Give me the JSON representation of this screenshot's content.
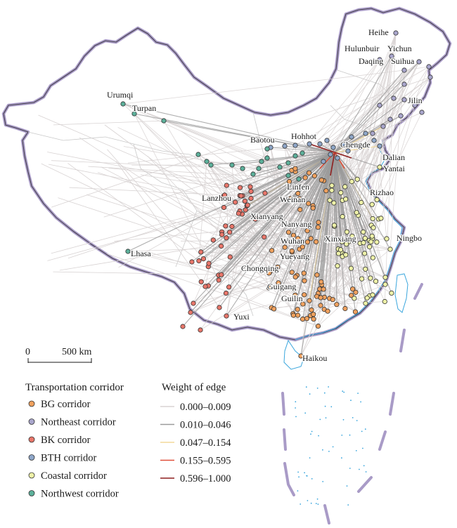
{
  "map": {
    "scale_bar": {
      "zero_label": "0",
      "distance_label": "500 km"
    },
    "city_labels": [
      {
        "name": "Heihe"
      },
      {
        "name": "Yichun"
      },
      {
        "name": "Hulunbuir"
      },
      {
        "name": "Daqing"
      },
      {
        "name": "Suihua"
      },
      {
        "name": "Jilin"
      },
      {
        "name": "Urumqi"
      },
      {
        "name": "Turpan"
      },
      {
        "name": "Hohhot"
      },
      {
        "name": "Baotou"
      },
      {
        "name": "Chengde"
      },
      {
        "name": "Dalian"
      },
      {
        "name": "Yantai"
      },
      {
        "name": "Linfen"
      },
      {
        "name": "Lanzhou"
      },
      {
        "name": "Weinan"
      },
      {
        "name": "Rizhao"
      },
      {
        "name": "Xianyang"
      },
      {
        "name": "Nanyang"
      },
      {
        "name": "Xinxiang"
      },
      {
        "name": "Ningbo"
      },
      {
        "name": "Wuhan"
      },
      {
        "name": "Lhasa"
      },
      {
        "name": "Yueyang"
      },
      {
        "name": "Chongqing"
      },
      {
        "name": "Guigang"
      },
      {
        "name": "Guilin"
      },
      {
        "name": "Yuxi"
      },
      {
        "name": "Haikou"
      }
    ]
  },
  "legend": {
    "corridor_title": "Transportation corridor",
    "corridors": [
      {
        "label": "BG corridor",
        "color": "#f0a15e"
      },
      {
        "label": "Northeast corridor",
        "color": "#a9a6cc"
      },
      {
        "label": "BK corridor",
        "color": "#e8766a"
      },
      {
        "label": "BTH corridor",
        "color": "#8fa7c9"
      },
      {
        "label": "Coastal corridor",
        "color": "#eef2a8"
      },
      {
        "label": "Northwest corridor",
        "color": "#5cb09a"
      }
    ],
    "weight_title": "Weight of edge",
    "weights": [
      {
        "label": "0.000–0.009",
        "color": "#d8d3d3"
      },
      {
        "label": "0.010–0.046",
        "color": "#9a9a9a"
      },
      {
        "label": "0.047–0.154",
        "color": "#f3d89a"
      },
      {
        "label": "0.155–0.595",
        "color": "#e0503a"
      },
      {
        "label": "0.596–1.000",
        "color": "#8e1f1f"
      }
    ]
  },
  "colors": {
    "border": "#a99bc7",
    "coast": "#3aa6dd",
    "internal_border": "#c9c9c9"
  }
}
